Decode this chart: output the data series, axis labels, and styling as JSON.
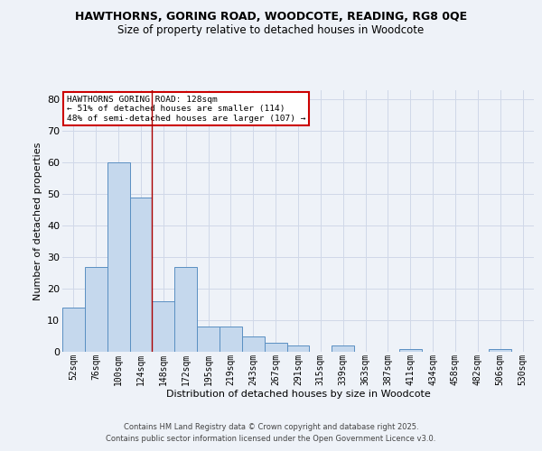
{
  "title_line1": "HAWTHORNS, GORING ROAD, WOODCOTE, READING, RG8 0QE",
  "title_line2": "Size of property relative to detached houses in Woodcote",
  "xlabel": "Distribution of detached houses by size in Woodcote",
  "ylabel": "Number of detached properties",
  "categories": [
    "52sqm",
    "76sqm",
    "100sqm",
    "124sqm",
    "148sqm",
    "172sqm",
    "195sqm",
    "219sqm",
    "243sqm",
    "267sqm",
    "291sqm",
    "315sqm",
    "339sqm",
    "363sqm",
    "387sqm",
    "411sqm",
    "434sqm",
    "458sqm",
    "482sqm",
    "506sqm",
    "530sqm"
  ],
  "values": [
    14,
    27,
    60,
    49,
    16,
    27,
    8,
    8,
    5,
    3,
    2,
    0,
    2,
    0,
    0,
    1,
    0,
    0,
    0,
    1,
    0
  ],
  "bar_color": "#c5d8ed",
  "bar_edge_color": "#5a8fc2",
  "grid_color": "#d0d8e8",
  "background_color": "#eef2f8",
  "red_line_x": 3.5,
  "annotation_text": "HAWTHORNS GORING ROAD: 128sqm\n← 51% of detached houses are smaller (114)\n48% of semi-detached houses are larger (107) →",
  "annotation_box_color": "#ffffff",
  "annotation_border_color": "#cc0000",
  "ylim": [
    0,
    83
  ],
  "yticks": [
    0,
    10,
    20,
    30,
    40,
    50,
    60,
    70,
    80
  ],
  "footer_line1": "Contains HM Land Registry data © Crown copyright and database right 2025.",
  "footer_line2": "Contains public sector information licensed under the Open Government Licence v3.0."
}
